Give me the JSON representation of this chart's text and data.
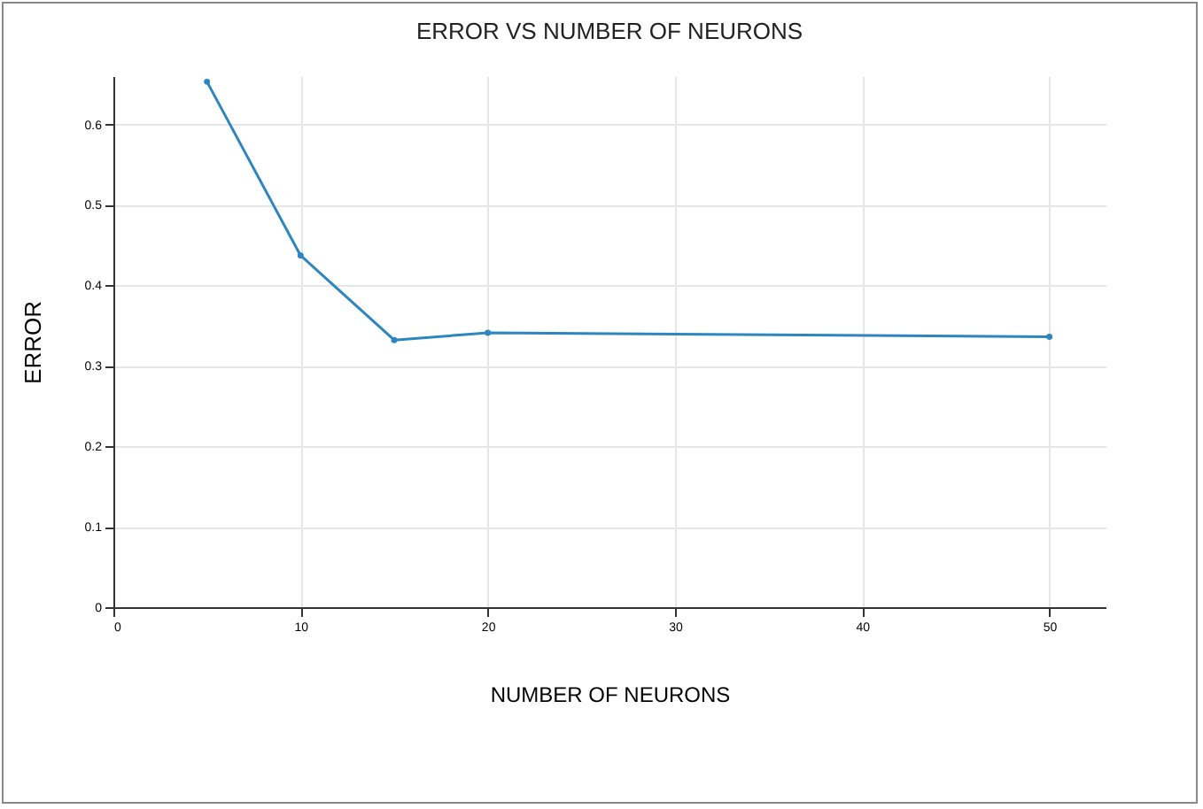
{
  "chart_data": {
    "type": "line",
    "title": "ERROR VS NUMBER OF NEURONS",
    "xlabel": "NUMBER OF NEURONS",
    "ylabel": "ERROR",
    "x": [
      5,
      10,
      15,
      20,
      50
    ],
    "series": [
      {
        "color": "#2e86c1",
        "values": [
          0.653,
          0.437,
          0.332,
          0.341,
          0.336
        ]
      }
    ],
    "xlim": [
      0,
      53
    ],
    "xticks": [
      0,
      10,
      20,
      30,
      40,
      50
    ],
    "ylim": [
      0,
      0.66
    ],
    "yticks": [
      0,
      0.1,
      0.2,
      0.3,
      0.4,
      0.5,
      0.6
    ],
    "grid": true,
    "marker": "circle",
    "line_style": "solid"
  }
}
